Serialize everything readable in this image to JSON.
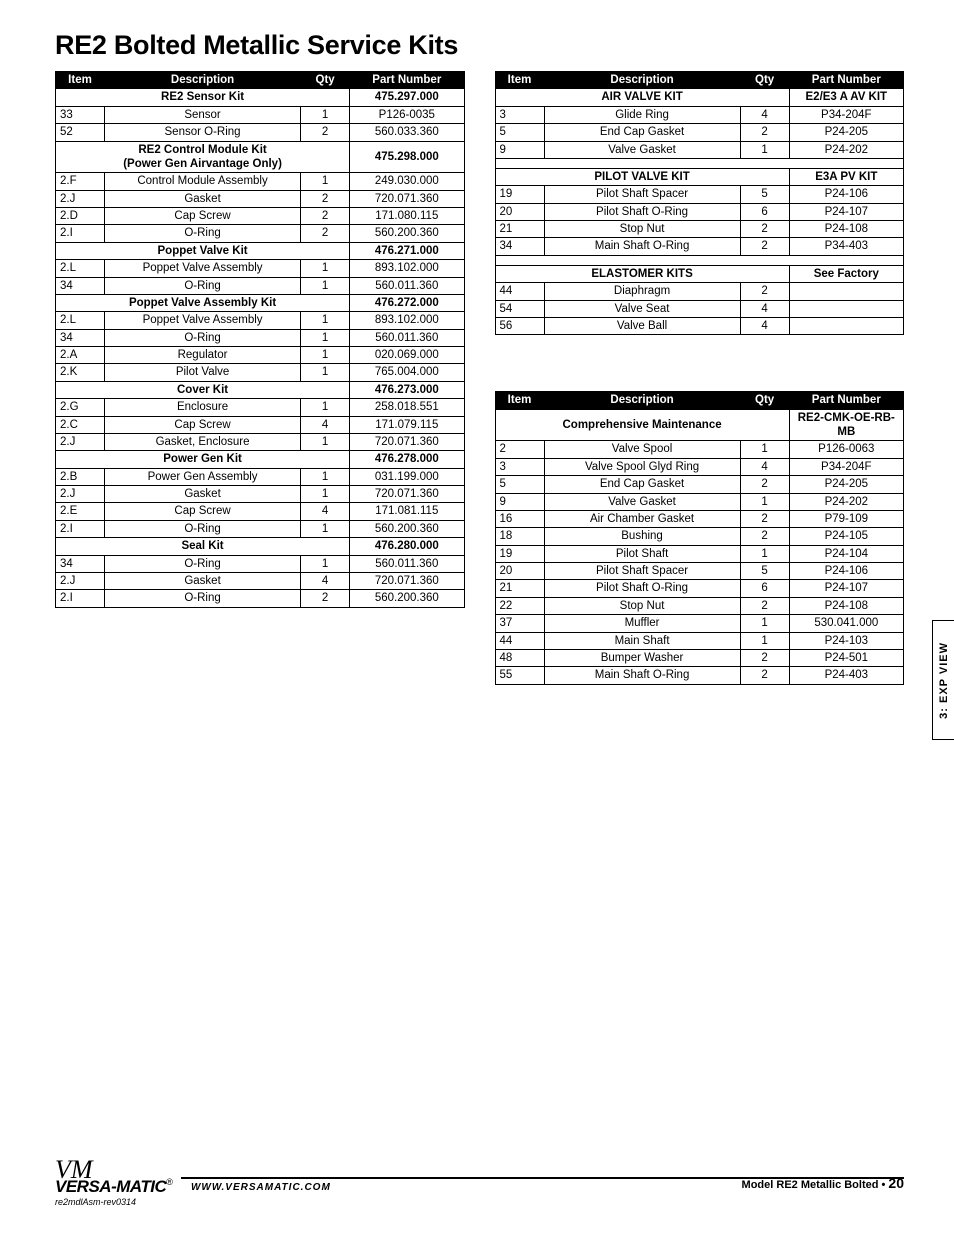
{
  "title": "RE2 Bolted Metallic Service Kits",
  "headers": {
    "item": "Item",
    "desc": "Description",
    "qty": "Qty",
    "pn": "Part Number"
  },
  "left": [
    {
      "type": "section",
      "label": "RE2 Sensor Kit",
      "pn": "475.297.000"
    },
    {
      "type": "row",
      "item": "33",
      "desc": "Sensor",
      "qty": "1",
      "pn": "P126-0035"
    },
    {
      "type": "row",
      "item": "52",
      "desc": "Sensor O-Ring",
      "qty": "2",
      "pn": "560.033.360"
    },
    {
      "type": "section",
      "label": "RE2 Control Module Kit",
      "label2": "(Power Gen Airvantage Only)",
      "pn": "475.298.000"
    },
    {
      "type": "row",
      "item": "2.F",
      "desc": "Control Module Assembly",
      "qty": "1",
      "pn": "249.030.000"
    },
    {
      "type": "row",
      "item": "2.J",
      "desc": "Gasket",
      "qty": "2",
      "pn": "720.071.360"
    },
    {
      "type": "row",
      "item": "2.D",
      "desc": "Cap Screw",
      "qty": "2",
      "pn": "171.080.115"
    },
    {
      "type": "row",
      "item": "2.I",
      "desc": "O-Ring",
      "qty": "2",
      "pn": "560.200.360"
    },
    {
      "type": "section",
      "label": "Poppet Valve Kit",
      "pn": "476.271.000"
    },
    {
      "type": "row",
      "item": "2.L",
      "desc": "Poppet Valve Assembly",
      "qty": "1",
      "pn": "893.102.000"
    },
    {
      "type": "row",
      "item": "34",
      "desc": "O-Ring",
      "qty": "1",
      "pn": "560.011.360"
    },
    {
      "type": "section",
      "label": "Poppet Valve Assembly Kit",
      "pn": "476.272.000"
    },
    {
      "type": "row",
      "item": "2.L",
      "desc": "Poppet Valve Assembly",
      "qty": "1",
      "pn": "893.102.000"
    },
    {
      "type": "row",
      "item": "34",
      "desc": "O-Ring",
      "qty": "1",
      "pn": "560.011.360"
    },
    {
      "type": "row",
      "item": "2.A",
      "desc": "Regulator",
      "qty": "1",
      "pn": "020.069.000"
    },
    {
      "type": "row",
      "item": "2.K",
      "desc": "Pilot Valve",
      "qty": "1",
      "pn": "765.004.000"
    },
    {
      "type": "section",
      "label": "Cover Kit",
      "pn": "476.273.000"
    },
    {
      "type": "row",
      "item": "2.G",
      "desc": "Enclosure",
      "qty": "1",
      "pn": "258.018.551"
    },
    {
      "type": "row",
      "item": "2.C",
      "desc": "Cap Screw",
      "qty": "4",
      "pn": "171.079.115"
    },
    {
      "type": "row",
      "item": "2.J",
      "desc": "Gasket, Enclosure",
      "qty": "1",
      "pn": "720.071.360"
    },
    {
      "type": "section",
      "label": "Power Gen Kit",
      "pn": "476.278.000"
    },
    {
      "type": "row",
      "item": "2.B",
      "desc": "Power Gen Assembly",
      "qty": "1",
      "pn": "031.199.000"
    },
    {
      "type": "row",
      "item": "2.J",
      "desc": "Gasket",
      "qty": "1",
      "pn": "720.071.360"
    },
    {
      "type": "row",
      "item": "2.E",
      "desc": "Cap Screw",
      "qty": "4",
      "pn": "171.081.115"
    },
    {
      "type": "row",
      "item": "2.I",
      "desc": "O-Ring",
      "qty": "1",
      "pn": "560.200.360"
    },
    {
      "type": "section",
      "label": "Seal Kit",
      "pn": "476.280.000"
    },
    {
      "type": "row",
      "item": "34",
      "desc": "O-Ring",
      "qty": "1",
      "pn": "560.011.360"
    },
    {
      "type": "row",
      "item": "2.J",
      "desc": "Gasket",
      "qty": "4",
      "pn": "720.071.360"
    },
    {
      "type": "row",
      "item": "2.I",
      "desc": "O-Ring",
      "qty": "2",
      "pn": "560.200.360"
    }
  ],
  "right_top": [
    {
      "type": "section",
      "label": "AIR VALVE KIT",
      "pn": "E2/E3 A AV KIT"
    },
    {
      "type": "row",
      "item": "3",
      "desc": "Glide Ring",
      "qty": "4",
      "pn": "P34-204F"
    },
    {
      "type": "row",
      "item": "5",
      "desc": "End Cap Gasket",
      "qty": "2",
      "pn": "P24-205"
    },
    {
      "type": "row",
      "item": "9",
      "desc": "Valve Gasket",
      "qty": "1",
      "pn": "P24-202"
    },
    {
      "type": "blank"
    },
    {
      "type": "section",
      "label": "PILOT VALVE KIT",
      "pn": "E3A PV KIT"
    },
    {
      "type": "row",
      "item": "19",
      "desc": "Pilot Shaft Spacer",
      "qty": "5",
      "pn": "P24-106"
    },
    {
      "type": "row",
      "item": "20",
      "desc": "Pilot Shaft O-Ring",
      "qty": "6",
      "pn": "P24-107"
    },
    {
      "type": "row",
      "item": "21",
      "desc": "Stop Nut",
      "qty": "2",
      "pn": "P24-108"
    },
    {
      "type": "row",
      "item": "34",
      "desc": "Main Shaft O-Ring",
      "qty": "2",
      "pn": "P34-403"
    },
    {
      "type": "blank"
    },
    {
      "type": "section",
      "label": "ELASTOMER KITS",
      "pn": "See Factory"
    },
    {
      "type": "row",
      "item": "44",
      "desc": "Diaphragm",
      "qty": "2",
      "pn": ""
    },
    {
      "type": "row",
      "item": "54",
      "desc": "Valve Seat",
      "qty": "4",
      "pn": ""
    },
    {
      "type": "row",
      "item": "56",
      "desc": "Valve Ball",
      "qty": "4",
      "pn": ""
    }
  ],
  "right_bottom": [
    {
      "type": "section",
      "label": "Comprehensive Maintenance",
      "pn": "RE2-CMK-OE-RB-MB"
    },
    {
      "type": "row",
      "item": "2",
      "desc": "Valve Spool",
      "qty": "1",
      "pn": "P126-0063"
    },
    {
      "type": "row",
      "item": "3",
      "desc": "Valve Spool Glyd Ring",
      "qty": "4",
      "pn": "P34-204F"
    },
    {
      "type": "row",
      "item": "5",
      "desc": "End Cap Gasket",
      "qty": "2",
      "pn": "P24-205"
    },
    {
      "type": "row",
      "item": "9",
      "desc": "Valve Gasket",
      "qty": "1",
      "pn": "P24-202"
    },
    {
      "type": "row",
      "item": "16",
      "desc": "Air Chamber Gasket",
      "qty": "2",
      "pn": "P79-109"
    },
    {
      "type": "row",
      "item": "18",
      "desc": "Bushing",
      "qty": "2",
      "pn": "P24-105"
    },
    {
      "type": "row",
      "item": "19",
      "desc": "Pilot Shaft",
      "qty": "1",
      "pn": "P24-104"
    },
    {
      "type": "row",
      "item": "20",
      "desc": "Pilot Shaft Spacer",
      "qty": "5",
      "pn": "P24-106"
    },
    {
      "type": "row",
      "item": "21",
      "desc": "Pilot Shaft O-Ring",
      "qty": "6",
      "pn": "P24-107"
    },
    {
      "type": "row",
      "item": "22",
      "desc": "Stop Nut",
      "qty": "2",
      "pn": "P24-108"
    },
    {
      "type": "row",
      "item": "37",
      "desc": "Muffler",
      "qty": "1",
      "pn": "530.041.000"
    },
    {
      "type": "row",
      "item": "44",
      "desc": "Main Shaft",
      "qty": "1",
      "pn": "P24-103"
    },
    {
      "type": "row",
      "item": "48",
      "desc": "Bumper Washer",
      "qty": "2",
      "pn": "P24-501"
    },
    {
      "type": "row",
      "item": "55",
      "desc": "Main Shaft O-Ring",
      "qty": "2",
      "pn": "P24-403"
    }
  ],
  "sidetab": "3: EXP VIEW",
  "footer": {
    "logo_script": "VM",
    "logo_bold": "VERSA-MATIC",
    "rev": "re2mdlAsm-rev0314",
    "url": "WWW.VERSAMATIC.COM",
    "model": "Model RE2 Metallic Bolted • ",
    "page": "20"
  }
}
